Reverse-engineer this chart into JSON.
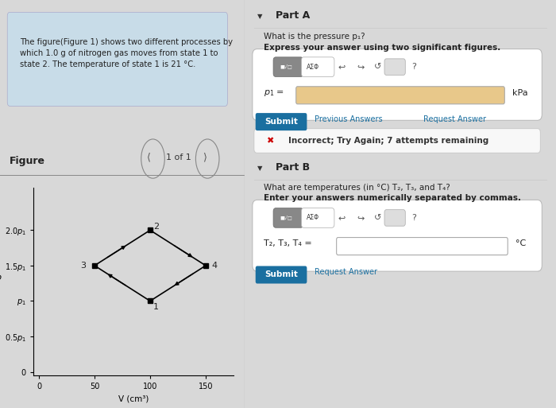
{
  "bg_color": "#d8d8d8",
  "left_panel_bg": "#d8d8d8",
  "right_panel_bg": "#d8d8d8",
  "problem_text_bg": "#c8dce8",
  "problem_text": "The figure(Figure 1) shows two different processes by\nwhich 1.0 g of nitrogen gas moves from state 1 to\nstate 2. The temperature of state 1 is 21 °C.",
  "figure_label": "Figure",
  "nav_text": "1 of 1",
  "plot_xlabel": "V (cm³)",
  "plot_ylabel": "p",
  "part_a_label": "Part A",
  "part_a_q1": "What is the pressure p₁?",
  "part_a_q2": "Express your answer using two significant figures.",
  "p1_label": "p₁ =",
  "kpa_label": "kPa",
  "submit_label": "Submit",
  "prev_ans_label": "Previous Answers",
  "req_ans_label": "Request Answer",
  "incorrect_label": "Incorrect; Try Again; 7 attempts remaining",
  "part_b_label": "Part B",
  "part_b_q1": "What are temperatures (in °C) T₂, T₃, and T₄?",
  "part_b_q2": "Enter your answers numerically separated by commas.",
  "t234_label": "T₂, T₃, T₄ =",
  "deg_c_label": "°C",
  "submit2_label": "Submit",
  "req_ans2_label": "Request Answer",
  "submit_btn_color": "#1a6fa0",
  "input_box_color": "#e8c88a",
  "error_x_color": "#cc0000",
  "link_color": "#1a6fa0",
  "section_line_color": "#888888"
}
